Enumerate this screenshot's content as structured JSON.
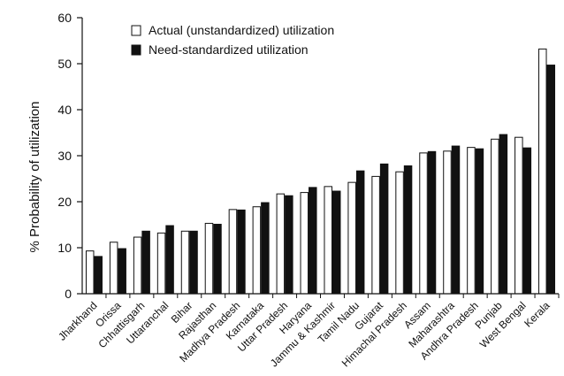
{
  "chart_data": {
    "type": "bar",
    "title": "",
    "xlabel": "",
    "ylabel": "% Probability of utilization",
    "ylim": [
      0,
      60
    ],
    "yticks": [
      0,
      10,
      20,
      30,
      40,
      50,
      60
    ],
    "grid": false,
    "legend_position": "top-left",
    "categories": [
      "Jharkhand",
      "Orissa",
      "Chhattisgarh",
      "Uttaranchal",
      "Bihar",
      "Rajasthan",
      "Madhya Pradesh",
      "Karnataka",
      "Uttar Pradesh",
      "Haryana",
      "Jammu & Kashmir",
      "Tamil Nadu",
      "Gujarat",
      "Himachal Pradesh",
      "Assam",
      "Maharashtra",
      "Andhra Pradesh",
      "Punjab",
      "West Bengal",
      "Kerala"
    ],
    "series": [
      {
        "name": "Actual (unstandardized) utilization",
        "color": "#ffffff",
        "values": [
          9.3,
          11.2,
          12.3,
          13.2,
          13.6,
          15.3,
          18.3,
          18.9,
          21.7,
          22.0,
          23.3,
          24.2,
          25.5,
          26.5,
          30.6,
          31.0,
          31.8,
          33.6,
          34.0,
          53.2
        ]
      },
      {
        "name": "Need-standardized utilization",
        "color": "#111111",
        "values": [
          8.1,
          9.8,
          13.6,
          14.8,
          13.6,
          15.1,
          18.2,
          19.8,
          21.3,
          23.1,
          22.3,
          26.7,
          28.2,
          27.8,
          30.9,
          32.1,
          31.5,
          34.6,
          31.7,
          49.7
        ]
      }
    ]
  }
}
